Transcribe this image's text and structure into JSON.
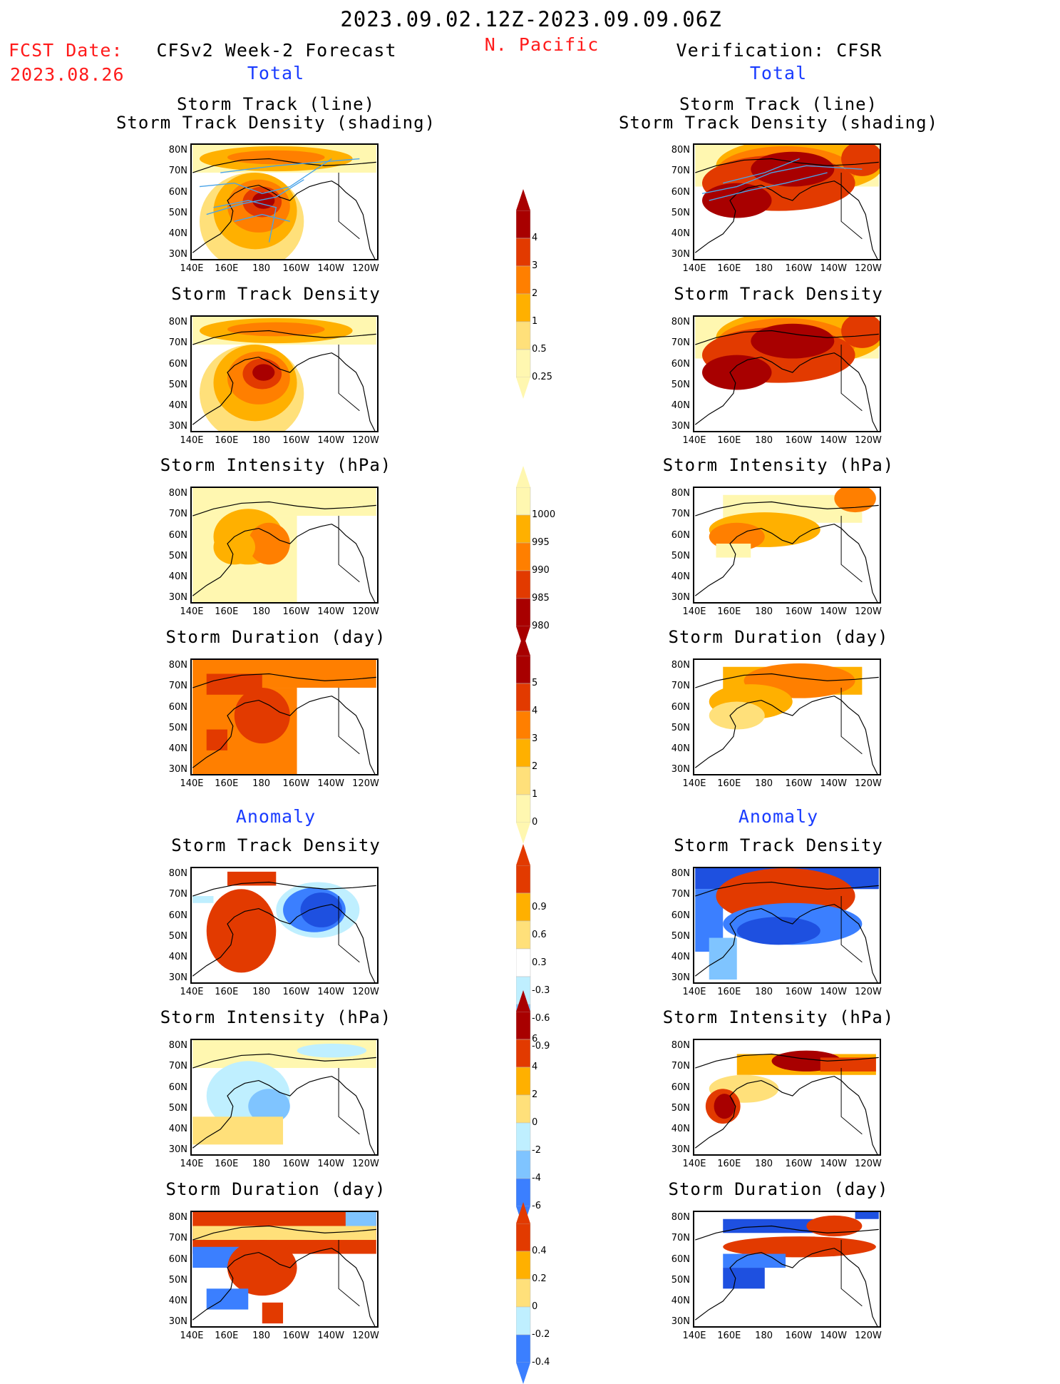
{
  "header": {
    "date_range": "2023.09.02.12Z-2023.09.09.06Z",
    "region": "N. Pacific",
    "fcst_label": "FCST Date:",
    "fcst_date": "2023.08.26",
    "left_title": "CFSv2 Week-2 Forecast",
    "right_title": "Verification: CFSR",
    "left_total": "Total",
    "right_total": "Total",
    "left_anomaly": "Anomaly",
    "right_anomaly": "Anomaly"
  },
  "panel_titles": {
    "track_line": "Storm Track (line)",
    "track_shading": "Storm Track Density (shading)",
    "density": "Storm Track Density",
    "intensity": "Storm Intensity (hPa)",
    "duration": "Storm Duration (day)"
  },
  "axes": {
    "lat_labels": [
      "80N",
      "70N",
      "60N",
      "50N",
      "40N",
      "30N"
    ],
    "lon_labels": [
      "140E",
      "160E",
      "180",
      "160W",
      "140W",
      "120W"
    ]
  },
  "colorbars": {
    "density": [
      "4",
      "3",
      "2",
      "1",
      "0.5",
      "0.25"
    ],
    "intensity": [
      "1000",
      "995",
      "990",
      "985",
      "980"
    ],
    "duration": [
      "5",
      "4",
      "3",
      "2",
      "1",
      "0"
    ],
    "density_anom": [
      "0.9",
      "0.6",
      "0.3",
      "-0.3",
      "-0.6",
      "-0.9"
    ],
    "intensity_anom": [
      "6",
      "4",
      "2",
      "0",
      "-2",
      "-4",
      "-6"
    ],
    "duration_anom": [
      "0.4",
      "0.2",
      "0",
      "-0.2",
      "-0.4"
    ]
  },
  "colors": {
    "warm": [
      "#fff7b0",
      "#ffe07a",
      "#ffb000",
      "#ff7f00",
      "#e23a00",
      "#a80000"
    ],
    "cool": [
      "#bfefff",
      "#7fc4ff",
      "#3b7fff",
      "#1e50e0"
    ],
    "track_line": "#4aa3e8",
    "title_red": "#ff1a1a",
    "title_blue": "#1a3cff"
  }
}
